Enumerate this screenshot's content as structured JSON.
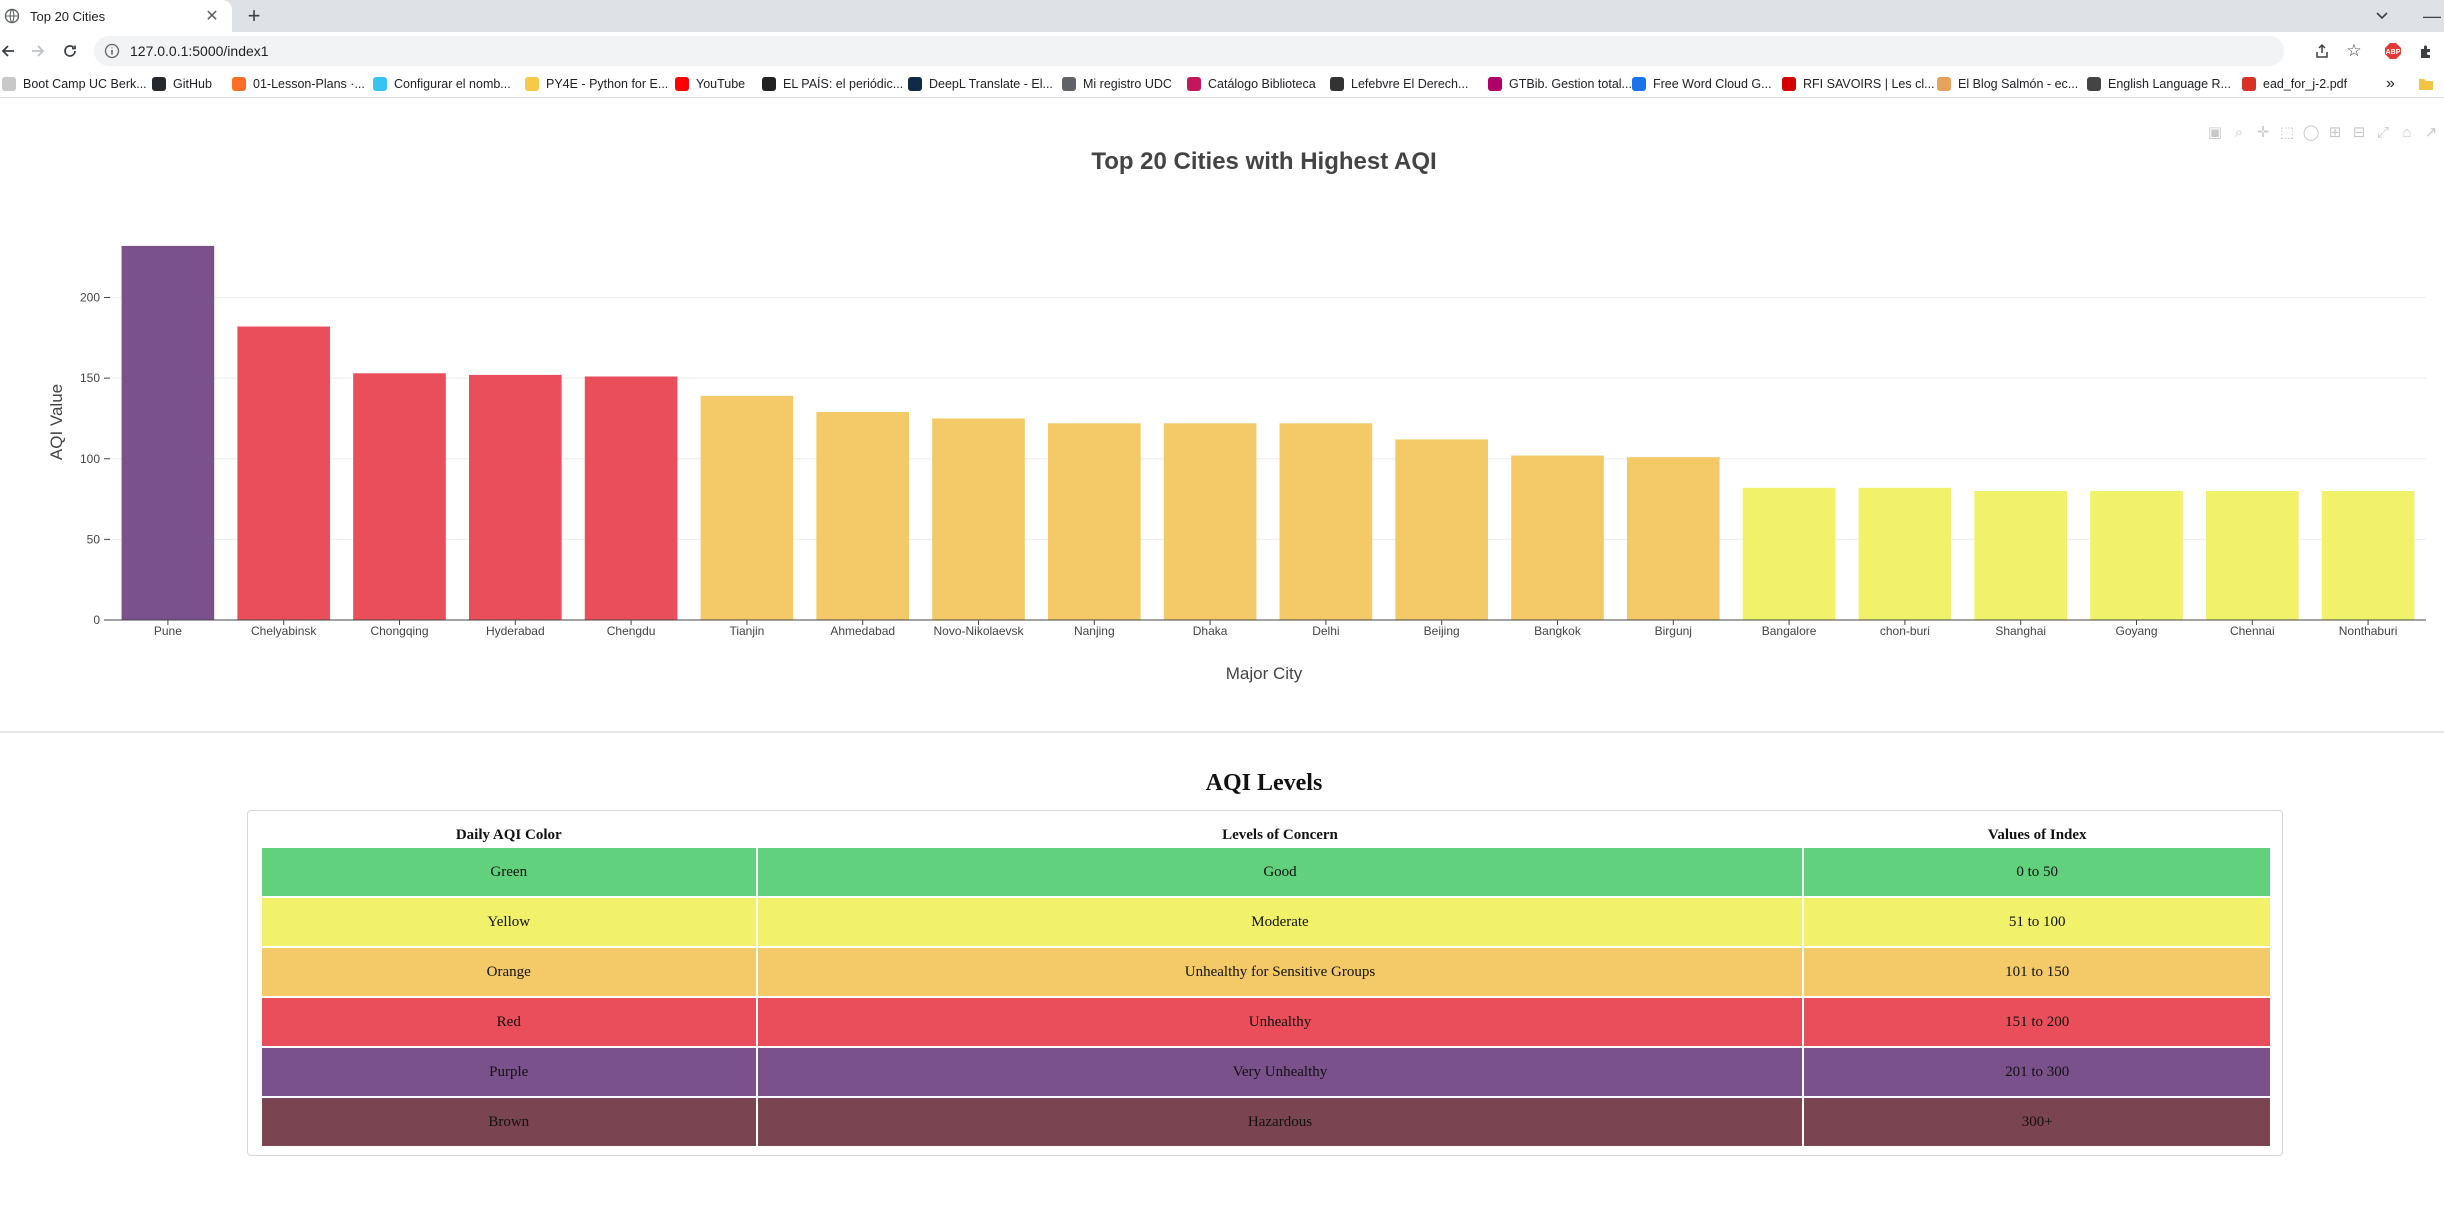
{
  "browser": {
    "tab_title": "Top 20 Cities",
    "url": "127.0.0.1:5000/index1",
    "bookmarks": [
      {
        "label": "Boot Camp UC Berk...",
        "color": "#c8c8c8"
      },
      {
        "label": "GitHub",
        "color": "#24292e"
      },
      {
        "label": "01-Lesson-Plans ·...",
        "color": "#fc6d26"
      },
      {
        "label": "Configurar el nomb...",
        "color": "#36c5f0"
      },
      {
        "label": "PY4E - Python for E...",
        "color": "#f7c948"
      },
      {
        "label": "YouTube",
        "color": "#ff0000"
      },
      {
        "label": "EL PAÍS: el periódic...",
        "color": "#222222"
      },
      {
        "label": "DeepL Translate - El...",
        "color": "#0f2b46"
      },
      {
        "label": "Mi registro UDC",
        "color": "#5f6368"
      },
      {
        "label": "Catálogo Biblioteca",
        "color": "#c2185b"
      },
      {
        "label": "Lefebvre El Derech...",
        "color": "#333333"
      },
      {
        "label": "GTBib. Gestion total...",
        "color": "#b0006a"
      },
      {
        "label": "Free Word Cloud G...",
        "color": "#1a73e8"
      },
      {
        "label": "RFI SAVOIRS | Les cl...",
        "color": "#d50000"
      },
      {
        "label": "El Blog Salmón - ec...",
        "color": "#e8a25a"
      },
      {
        "label": "English Language R...",
        "color": "#444444"
      },
      {
        "label": "ead_for_j-2.pdf",
        "color": "#d93025"
      }
    ],
    "more_bookmarks": "»"
  },
  "chart_data": {
    "type": "bar",
    "title": "Top 20 Cities with Highest AQI",
    "xlabel": "Major City",
    "ylabel": "AQI Value",
    "ylim": [
      0,
      240
    ],
    "yticks": [
      0,
      50,
      100,
      150,
      200
    ],
    "grid": true,
    "categories": [
      "Pune",
      "Chelyabinsk",
      "Chongqing",
      "Hyderabad",
      "Chengdu",
      "Tianjin",
      "Ahmedabad",
      "Novo-Nikolaevsk",
      "Nanjing",
      "Dhaka",
      "Delhi",
      "Beijing",
      "Bangkok",
      "Birgunj",
      "Bangalore",
      "chon-buri",
      "Shanghai",
      "Goyang",
      "Chennai",
      "Nonthaburi"
    ],
    "values": [
      232,
      182,
      153,
      152,
      151,
      139,
      129,
      125,
      122,
      122,
      122,
      112,
      102,
      101,
      82,
      82,
      80,
      80,
      80,
      80
    ],
    "colors": [
      "#7a518a",
      "#ea4e5a",
      "#ea4e5a",
      "#ea4e5a",
      "#ea4e5a",
      "#f4ca69",
      "#f4ca69",
      "#f4ca69",
      "#f4ca69",
      "#f4ca69",
      "#f4ca69",
      "#f4ca69",
      "#f4ca69",
      "#f4ca69",
      "#f2f16a",
      "#f2f16a",
      "#f2f16a",
      "#f2f16a",
      "#f2f16a",
      "#f2f16a"
    ]
  },
  "aqi_table": {
    "title": "AQI Levels",
    "headers": [
      "Daily AQI Color",
      "Levels of Concern",
      "Values of Index"
    ],
    "rows": [
      {
        "color_name": "Green",
        "concern": "Good",
        "range": "0 to 50",
        "bg": "#62d17d"
      },
      {
        "color_name": "Yellow",
        "concern": "Moderate",
        "range": "51 to 100",
        "bg": "#f2f16a"
      },
      {
        "color_name": "Orange",
        "concern": "Unhealthy for Sensitive Groups",
        "range": "101 to 150",
        "bg": "#f4ca69"
      },
      {
        "color_name": "Red",
        "concern": "Unhealthy",
        "range": "151 to 200",
        "bg": "#ea4e5a"
      },
      {
        "color_name": "Purple",
        "concern": "Very Unhealthy",
        "range": "201 to 300",
        "bg": "#7a518a"
      },
      {
        "color_name": "Brown",
        "concern": "Hazardous",
        "range": "300+",
        "bg": "#7a4450"
      }
    ]
  }
}
